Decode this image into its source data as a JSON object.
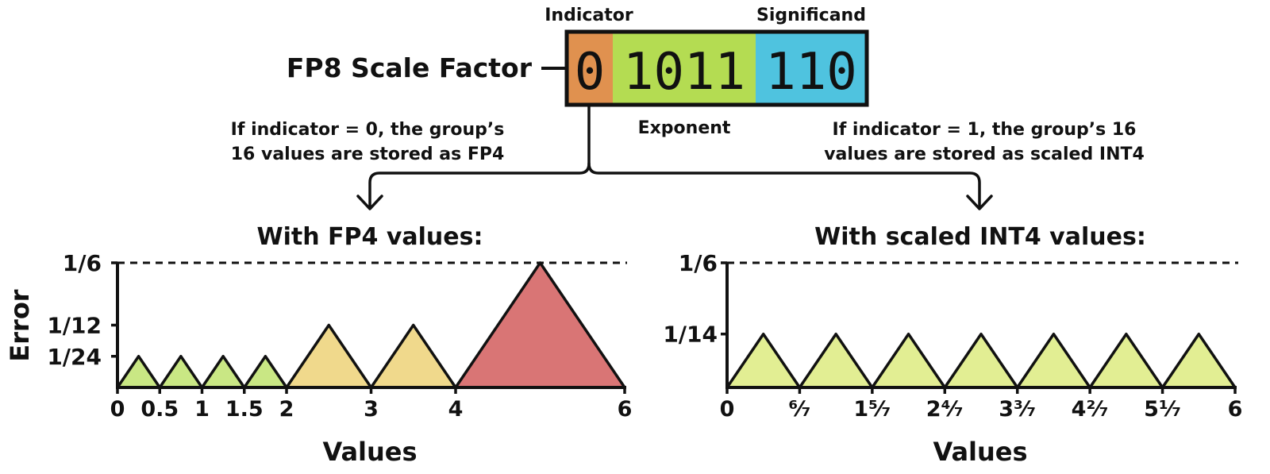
{
  "colors": {
    "indicator": "#e0914f",
    "exponent": "#b4dc52",
    "significand": "#4fc3df",
    "indicator_label": "#c97c42",
    "exponent_label": "#8a9c34",
    "significand_label": "#3ea4b6",
    "tri_green": "#c9e784",
    "tri_yellow": "#f0d98c",
    "tri_red": "#d97575",
    "tri_light": "#e2ee93"
  },
  "header": {
    "title": "FP8 Scale Factor",
    "indicator_label": "Indicator",
    "exponent_label": "Exponent",
    "significand_label": "Significand",
    "bits": {
      "indicator": "0",
      "exponent": "1011",
      "significand": "110"
    }
  },
  "notes": {
    "left": [
      "If indicator = 0, the group’s",
      "16 values are stored as FP4"
    ],
    "right": [
      "If indicator = 1, the group’s 16",
      "values are stored as scaled INT4"
    ]
  },
  "chart_data": [
    {
      "type": "area",
      "title": "With FP4 values:",
      "xlabel": "Values",
      "ylabel": "Error",
      "xlim": [
        0,
        6
      ],
      "ylim": [
        0,
        0.16667
      ],
      "x_ticks": [
        {
          "v": 0,
          "label": "0"
        },
        {
          "v": 0.5,
          "label": "0.5"
        },
        {
          "v": 1,
          "label": "1"
        },
        {
          "v": 1.5,
          "label": "1.5"
        },
        {
          "v": 2,
          "label": "2"
        },
        {
          "v": 3,
          "label": "3"
        },
        {
          "v": 4,
          "label": "4"
        },
        {
          "v": 6,
          "label": "6"
        }
      ],
      "y_ticks": [
        {
          "v": 0.041667,
          "label": "1/24"
        },
        {
          "v": 0.083333,
          "label": "1/12"
        },
        {
          "v": 0.16667,
          "label": "1/6"
        }
      ],
      "reference_line": 0.16667,
      "points": [
        0,
        0.5,
        1,
        1.5,
        2,
        3,
        4,
        6
      ],
      "peak_errors": [
        0.041667,
        0.041667,
        0.041667,
        0.041667,
        0.083333,
        0.083333,
        0.16667
      ],
      "fill_colors": [
        "#c9e784",
        "#c9e784",
        "#c9e784",
        "#c9e784",
        "#f0d98c",
        "#f0d98c",
        "#d97575"
      ]
    },
    {
      "type": "area",
      "title": "With scaled INT4 values:",
      "xlabel": "Values",
      "ylabel": "",
      "xlim": [
        0,
        6
      ],
      "ylim": [
        0,
        0.16667
      ],
      "x_ticks": [
        {
          "v": 0,
          "label": "0"
        },
        {
          "v": 0.857143,
          "label": "⁶⁄₇"
        },
        {
          "v": 1.714286,
          "label": "1⁵⁄₇"
        },
        {
          "v": 2.571429,
          "label": "2⁴⁄₇"
        },
        {
          "v": 3.428571,
          "label": "3³⁄₇"
        },
        {
          "v": 4.285714,
          "label": "4²⁄₇"
        },
        {
          "v": 5.142857,
          "label": "5¹⁄₇"
        },
        {
          "v": 6,
          "label": "6"
        }
      ],
      "y_ticks": [
        {
          "v": 0.071429,
          "label": "1/14"
        },
        {
          "v": 0.16667,
          "label": "1/6"
        }
      ],
      "reference_line": 0.16667,
      "points": [
        0,
        0.857143,
        1.714286,
        2.571429,
        3.428571,
        4.285714,
        5.142857,
        6
      ],
      "peak_errors": [
        0.071429,
        0.071429,
        0.071429,
        0.071429,
        0.071429,
        0.071429,
        0.071429
      ],
      "fill_colors": [
        "#e2ee93",
        "#e2ee93",
        "#e2ee93",
        "#e2ee93",
        "#e2ee93",
        "#e2ee93",
        "#e2ee93"
      ]
    }
  ]
}
